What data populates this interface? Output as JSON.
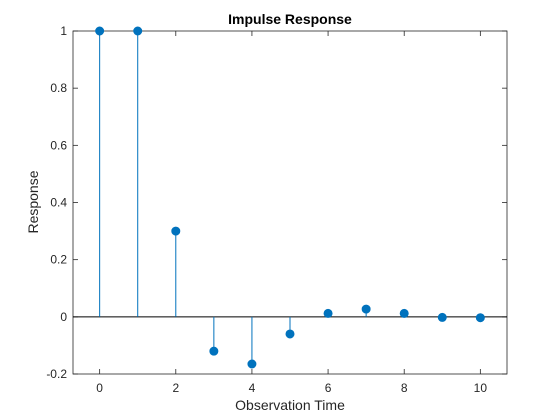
{
  "chart_data": {
    "type": "stem",
    "title": "Impulse Response",
    "xlabel": "Observation Time",
    "ylabel": "Response",
    "x": [
      0,
      1,
      2,
      3,
      4,
      5,
      6,
      7,
      8,
      9,
      10
    ],
    "values": [
      1,
      1,
      0.3,
      -0.12,
      -0.165,
      -0.06,
      0.012,
      0.027,
      0.012,
      -0.002,
      -0.003
    ],
    "xlim": [
      -0.7,
      10.7
    ],
    "ylim": [
      -0.2,
      1
    ],
    "xticks": [
      0,
      2,
      4,
      6,
      8,
      10
    ],
    "xtick_labels": [
      "0",
      "2",
      "4",
      "6",
      "8",
      "10"
    ],
    "yticks": [
      -0.2,
      0,
      0.2,
      0.4,
      0.6,
      0.8,
      1
    ],
    "ytick_labels": [
      "-0.2",
      "0",
      "0.2",
      "0.4",
      "0.6",
      "0.8",
      "1"
    ],
    "baseline": 0,
    "grid": false,
    "colors": {
      "stem": "#0072BD",
      "axes": "#262626",
      "baseline": "#000000"
    }
  }
}
